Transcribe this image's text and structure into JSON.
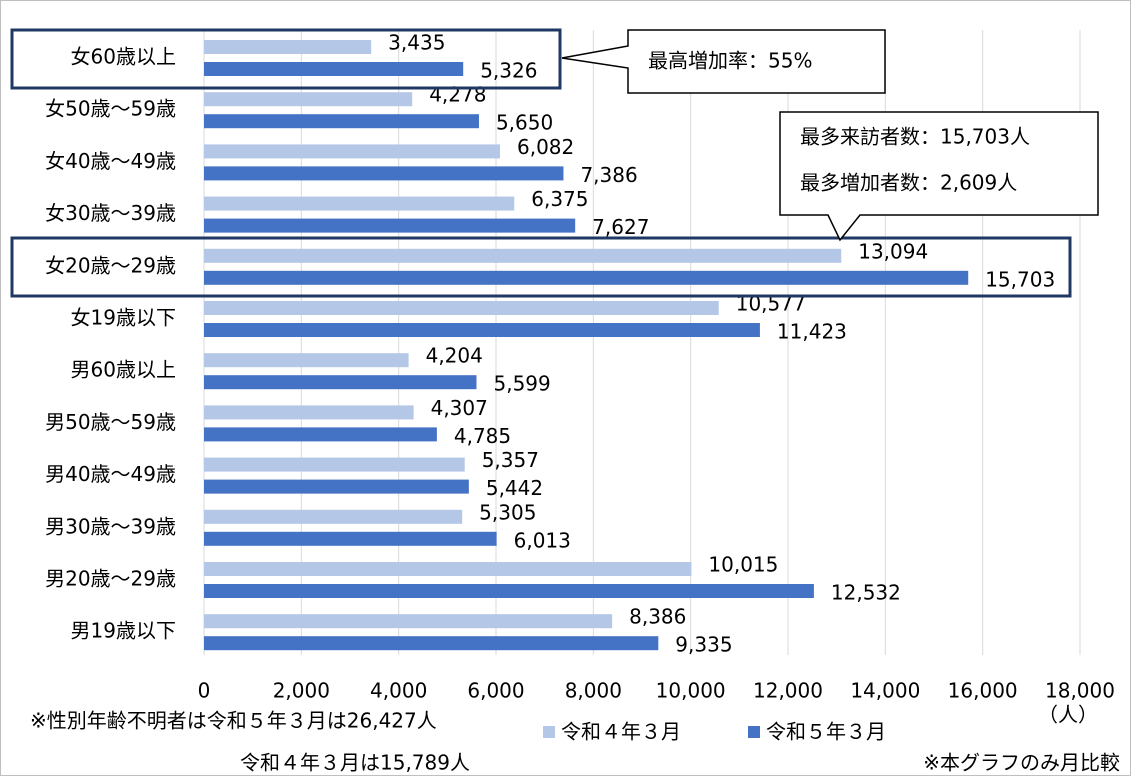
{
  "chart_data": {
    "type": "bar",
    "orientation": "horizontal",
    "categories": [
      "女60歳以上",
      "女50歳～59歳",
      "女40歳～49歳",
      "女30歳～39歳",
      "女20歳～29歳",
      "女19歳以下",
      "男60歳以上",
      "男50歳～59歳",
      "男40歳～49歳",
      "男30歳～39歳",
      "男20歳～29歳",
      "男19歳以下"
    ],
    "series": [
      {
        "name": "令和４年３月",
        "color": "#b4c7e7",
        "values": [
          3435,
          4278,
          6082,
          6375,
          13094,
          10577,
          4204,
          4307,
          5357,
          5305,
          10015,
          8386
        ],
        "value_labels": [
          "3,435",
          "4,278",
          "6,082",
          "6,375",
          "13,094",
          "10,577",
          "4,204",
          "4,307",
          "5,357",
          "5,305",
          "10,015",
          "8,386"
        ]
      },
      {
        "name": "令和５年３月",
        "color": "#4472c4",
        "values": [
          5326,
          5650,
          7386,
          7627,
          15703,
          11423,
          5599,
          4785,
          5442,
          6013,
          12532,
          9335
        ],
        "value_labels": [
          "5,326",
          "5,650",
          "7,386",
          "7,627",
          "15,703",
          "11,423",
          "5,599",
          "4,785",
          "5,442",
          "6,013",
          "12,532",
          "9,335"
        ]
      }
    ],
    "xlim": [
      0,
      18000
    ],
    "xticks": [
      0,
      {
        "value": 2000,
        "label": "2,000"
      },
      {
        "value": 4000,
        "label": "4,000"
      },
      {
        "value": 6000,
        "label": "6,000"
      },
      {
        "value": 8000,
        "label": "8,000"
      },
      {
        "value": 10000,
        "label": "10,000"
      },
      {
        "value": 12000,
        "label": "12,000"
      },
      {
        "value": 14000,
        "label": "14,000"
      },
      {
        "value": 16000,
        "label": "16,000"
      },
      {
        "value": 18000,
        "label": "18,000"
      }
    ],
    "x_unit": "（人）",
    "grid": true,
    "annotations": [
      "最高増加率：55%",
      "最多来訪者数：15,703人",
      "最多増加者数：2,609人"
    ],
    "notes": [
      "※性別年齢不明者は令和５年３月は26,427人",
      "令和４年３月は15,789人",
      "※本グラフのみ月比較"
    ]
  }
}
